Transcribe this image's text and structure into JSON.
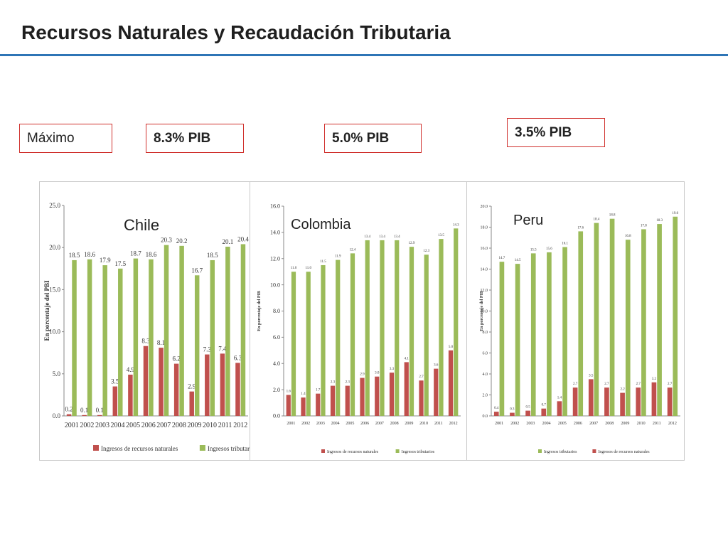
{
  "slide": {
    "title": "Recursos Naturales y Recaudación Tributaria",
    "label_max": "Máximo",
    "boxes": [
      "8.3% PIB",
      "5.0% PIB",
      "3.5% PIB"
    ]
  },
  "colors": {
    "natural": "#c0504d",
    "tributarios": "#9bbb59",
    "accent": "#2e75b6",
    "box_border": "#d0312d"
  },
  "chart_data": [
    {
      "type": "bar",
      "title": "Chile",
      "ylabel": "En porcentaje del PBI",
      "ylim": [
        0,
        25
      ],
      "yticks": [
        "0.0",
        "5.0",
        "10.0",
        "15.0",
        "20.0",
        "25.0"
      ],
      "categories": [
        "2001",
        "2002",
        "2003",
        "2004",
        "2005",
        "2006",
        "2007",
        "2008",
        "2009",
        "2010",
        "2011",
        "2012"
      ],
      "series": [
        {
          "name": "Ingresos de recursos naturales",
          "color": "#c0504d",
          "values": [
            0.2,
            0.1,
            0.1,
            3.5,
            4.9,
            8.3,
            8.1,
            6.2,
            2.9,
            7.3,
            7.4,
            6.3
          ],
          "labels": [
            "0.2",
            "0.1",
            "0.1",
            "3.5",
            "4.9",
            "8.3",
            "8.1",
            "6.2",
            "2.9",
            "7.3",
            "7.4",
            "6.3"
          ]
        },
        {
          "name": "Ingresos tributarios",
          "color": "#9bbb59",
          "values": [
            18.5,
            18.6,
            17.9,
            17.5,
            18.7,
            18.6,
            20.3,
            20.2,
            16.7,
            18.5,
            20.1,
            20.4
          ],
          "labels": [
            "18.5",
            "18.6",
            "17.9",
            "17.5",
            "18.7",
            "18.6",
            "20.3",
            "20.2",
            "16.7",
            "18.5",
            "20.1",
            "20.4"
          ]
        }
      ],
      "legend_order": [
        0,
        1
      ],
      "legend": "bottom"
    },
    {
      "type": "bar",
      "title": "Colombia",
      "ylabel": "En porcentaje del PIB",
      "ylim": [
        0,
        16
      ],
      "yticks": [
        "0.0",
        "2.0",
        "4.0",
        "6.0",
        "8.0",
        "10.0",
        "12.0",
        "14.0",
        "16.0"
      ],
      "categories": [
        "2001",
        "2002",
        "2003",
        "2004",
        "2005",
        "2006",
        "2007",
        "2008",
        "2009",
        "2010",
        "2011",
        "2012"
      ],
      "series": [
        {
          "name": "Ingresos de recursos naturales",
          "color": "#c0504d",
          "values": [
            1.6,
            1.4,
            1.7,
            2.3,
            2.3,
            2.9,
            3.0,
            3.3,
            4.1,
            2.7,
            3.6,
            5.0
          ],
          "labels": [
            "1.6",
            "1.4",
            "1.7",
            "2.3",
            "2.3",
            "2.9",
            "3.0",
            "3.3",
            "4.1",
            "2.7",
            "3.6",
            "5.0"
          ]
        },
        {
          "name": "Ingresos tributarios",
          "color": "#9bbb59",
          "values": [
            11.0,
            11.0,
            11.5,
            11.9,
            12.4,
            13.4,
            13.4,
            13.4,
            12.9,
            12.3,
            13.5,
            14.3
          ],
          "labels": [
            "11.0",
            "11.0",
            "11.5",
            "11.9",
            "12.4",
            "13.4",
            "13.4",
            "13.4",
            "12.9",
            "12.3",
            "13.5",
            "14.3"
          ]
        }
      ],
      "legend_order": [
        0,
        1
      ],
      "legend": "bottom"
    },
    {
      "type": "bar",
      "title": "Peru",
      "ylabel": "En porcentaje del PIB",
      "ylim": [
        0,
        20
      ],
      "yticks": [
        "0.0",
        "2.0",
        "4.0",
        "6.0",
        "8.0",
        "10.0",
        "12.0",
        "14.0",
        "16.0",
        "18.0",
        "20.0"
      ],
      "categories": [
        "2001",
        "2002",
        "2003",
        "2004",
        "2005",
        "2006",
        "2007",
        "2008",
        "2009",
        "2010",
        "2011",
        "2012"
      ],
      "series": [
        {
          "name": "Ingresos de recursos naturales",
          "color": "#c0504d",
          "values": [
            0.4,
            0.3,
            0.5,
            0.7,
            1.4,
            2.7,
            3.5,
            2.7,
            2.2,
            2.7,
            3.2,
            2.7
          ],
          "labels": [
            "0.4",
            "0.3",
            "0.5",
            "0.7",
            "1.4",
            "2.7",
            "3.5",
            "2.7",
            "2.2",
            "2.7",
            "3.2",
            "2.7"
          ]
        },
        {
          "name": "Ingresos tributarios",
          "color": "#9bbb59",
          "values": [
            14.7,
            14.5,
            15.5,
            15.6,
            16.1,
            17.6,
            18.4,
            18.8,
            16.8,
            17.8,
            18.3,
            19.0
          ],
          "labels": [
            "14.7",
            "14.5",
            "15.5",
            "15.6",
            "16.1",
            "17.6",
            "18.4",
            "18.8",
            "16.8",
            "17.8",
            "18.3",
            "19.0"
          ]
        }
      ],
      "legend_order": [
        1,
        0
      ],
      "legend": "bottom"
    }
  ]
}
